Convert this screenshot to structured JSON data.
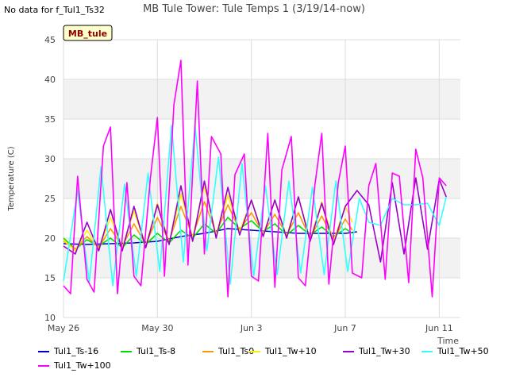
{
  "header": {
    "no_data_note": "No data for f_Tul1_Ts32",
    "title": "MB Tule Tower: Tule Temps 1 (3/19/14-now)"
  },
  "chart_data": {
    "type": "line",
    "title": "MB Tule Tower: Tule Temps 1 (3/19/14-now)",
    "xlabel": "Time",
    "ylabel": "Temperature (C)",
    "site_label": "MB_tule",
    "xlim": [
      0,
      16.9
    ],
    "ylim": [
      10,
      45
    ],
    "x_unit": "days since May 26",
    "x_ticks": [
      {
        "value": 0,
        "label": "May 26"
      },
      {
        "value": 4,
        "label": "May 30"
      },
      {
        "value": 8,
        "label": "Jun 3"
      },
      {
        "value": 12,
        "label": "Jun 7"
      },
      {
        "value": 16,
        "label": "Jun 11"
      }
    ],
    "y_ticks": [
      10,
      15,
      20,
      25,
      30,
      35,
      40,
      45
    ],
    "grid": true,
    "series": [
      {
        "name": "Tul1_Ts-16",
        "color": "#0000cc",
        "x": [
          0,
          1,
          2,
          3,
          4,
          5,
          6,
          7,
          8,
          9,
          10,
          11,
          12,
          12.5
        ],
        "y": [
          19.3,
          19.2,
          19.3,
          19.4,
          19.6,
          20.2,
          20.6,
          21.2,
          21.0,
          20.8,
          20.6,
          20.6,
          20.6,
          20.8
        ]
      },
      {
        "name": "Tul1_Ts-8",
        "color": "#00dd00",
        "x": [
          0,
          0.5,
          1,
          1.5,
          2,
          2.5,
          3,
          3.5,
          4,
          4.5,
          5,
          5.5,
          6,
          6.5,
          7,
          7.5,
          8,
          8.5,
          9,
          9.5,
          10,
          10.5,
          11,
          11.5,
          12,
          12.3
        ],
        "y": [
          20.0,
          18.6,
          19.8,
          19.0,
          20.0,
          18.8,
          20.4,
          19.2,
          20.6,
          19.4,
          21.0,
          20.0,
          21.8,
          20.6,
          22.6,
          21.2,
          22.2,
          20.8,
          21.8,
          20.4,
          21.6,
          20.4,
          21.4,
          20.2,
          21.2,
          20.6
        ]
      },
      {
        "name": "Tul1_Ts0",
        "color": "#ff9900",
        "x": [
          0,
          0.5,
          1,
          1.5,
          2,
          2.5,
          3,
          3.5,
          4,
          4.5,
          5,
          5.5,
          6,
          6.5,
          7,
          7.5,
          8,
          8.5,
          9,
          9.5,
          10,
          10.5,
          11,
          11.5,
          12,
          12.3
        ],
        "y": [
          19.6,
          18.6,
          20.2,
          18.8,
          21.2,
          19.0,
          21.8,
          19.2,
          22.6,
          19.6,
          24.0,
          20.2,
          24.6,
          20.6,
          24.2,
          21.0,
          23.2,
          20.6,
          23.0,
          20.4,
          23.2,
          20.0,
          22.8,
          19.8,
          22.4,
          21.0
        ]
      },
      {
        "name": "Tul1_Tw+10",
        "color": "#ffee00",
        "x": [
          0,
          0.5,
          1,
          1.5,
          2,
          2.5,
          3,
          3.5,
          4,
          4.5,
          5,
          5.5,
          6,
          6.5,
          7,
          7.5,
          8,
          8.5,
          9,
          9.5,
          10,
          10.5,
          11,
          11.5,
          12,
          12.3
        ],
        "y": [
          19.8,
          18.4,
          21.0,
          18.6,
          22.6,
          18.8,
          23.4,
          19.0,
          24.4,
          19.4,
          25.6,
          20.0,
          26.6,
          20.4,
          25.4,
          20.8,
          24.8,
          20.4,
          24.8,
          20.2,
          25.2,
          19.8,
          24.6,
          19.6,
          24.0,
          22.0
        ]
      },
      {
        "name": "Tul1_Tw+30",
        "color": "#9900cc",
        "x": [
          0,
          0.5,
          1,
          1.5,
          2,
          2.5,
          3,
          3.5,
          4,
          4.5,
          5,
          5.5,
          6,
          6.5,
          7,
          7.5,
          8,
          8.5,
          9,
          9.5,
          10,
          10.5,
          11,
          11.5,
          12,
          12.5,
          13,
          13.5,
          14,
          14.5,
          15,
          15.5,
          16,
          16.3
        ],
        "y": [
          19.0,
          18.0,
          22.0,
          18.4,
          23.6,
          18.4,
          24.0,
          18.8,
          24.2,
          19.2,
          26.6,
          19.6,
          27.2,
          20.0,
          26.4,
          20.4,
          24.8,
          20.2,
          24.8,
          20.0,
          25.2,
          19.6,
          24.4,
          19.2,
          24.0,
          26.0,
          24.2,
          17.0,
          27.0,
          18.0,
          27.6,
          18.6,
          27.4,
          25.2
        ]
      },
      {
        "name": "Tul1_Tw+50",
        "color": "#33ffff",
        "x": [
          0,
          0.6,
          1.1,
          1.6,
          2.1,
          2.6,
          3.1,
          3.6,
          4.1,
          4.6,
          5.1,
          5.6,
          6.1,
          6.6,
          7.1,
          7.6,
          8.1,
          8.6,
          9.1,
          9.6,
          10.1,
          10.6,
          11.1,
          11.6,
          12.1,
          12.6,
          13,
          13.5,
          14,
          14.5,
          15,
          15.5,
          16,
          16.3
        ],
        "y": [
          14.6,
          26.0,
          14.4,
          29.0,
          14.0,
          26.8,
          15.2,
          28.2,
          15.8,
          34.2,
          17.0,
          34.2,
          18.4,
          30.2,
          14.2,
          29.4,
          15.2,
          26.6,
          15.4,
          27.2,
          15.6,
          26.4,
          15.4,
          27.2,
          15.8,
          25.0,
          22.0,
          21.6,
          25.0,
          24.2,
          24.2,
          24.4,
          21.6,
          25.2
        ]
      },
      {
        "name": "Tul1_Tw+100",
        "color": "#ff00ff",
        "x": [
          0,
          0.3,
          0.6,
          1.0,
          1.3,
          1.7,
          2.0,
          2.3,
          2.7,
          3.0,
          3.3,
          3.7,
          4.0,
          4.3,
          4.7,
          5.0,
          5.3,
          5.7,
          6.0,
          6.3,
          6.7,
          7.0,
          7.3,
          7.7,
          8.0,
          8.3,
          8.7,
          9.0,
          9.3,
          9.7,
          10.0,
          10.3,
          10.7,
          11.0,
          11.3,
          11.7,
          12.0,
          12.3,
          12.7,
          13.0,
          13.3,
          13.7,
          14.0,
          14.3,
          14.7,
          15.0,
          15.3,
          15.7,
          16.0,
          16.3
        ],
        "y": [
          14.0,
          13.0,
          27.8,
          14.8,
          13.2,
          31.6,
          34.0,
          13.0,
          27.0,
          15.2,
          14.0,
          27.6,
          35.2,
          15.2,
          36.8,
          42.4,
          16.6,
          39.8,
          18.0,
          32.8,
          30.6,
          12.6,
          28.0,
          30.6,
          15.2,
          14.6,
          33.2,
          13.8,
          28.6,
          32.8,
          15.0,
          14.0,
          26.6,
          33.2,
          14.2,
          27.0,
          31.6,
          15.6,
          15.0,
          26.6,
          29.4,
          14.8,
          28.2,
          27.8,
          14.4,
          31.2,
          27.6,
          12.6,
          27.6,
          26.6
        ]
      }
    ]
  }
}
